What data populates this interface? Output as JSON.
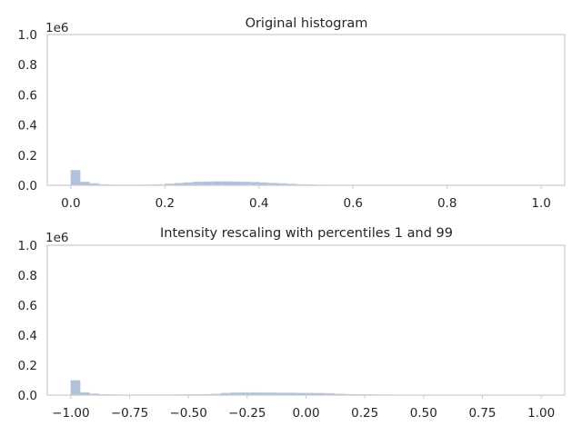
{
  "chart_data": [
    {
      "type": "bar",
      "title": "Original histogram",
      "xlabel": "",
      "ylabel": "",
      "y_offset_label": "1e6",
      "xlim": [
        -0.05,
        1.05
      ],
      "ylim": [
        0,
        1000000
      ],
      "grid": false,
      "xticks": [
        0.0,
        0.2,
        0.4,
        0.6,
        0.8,
        1.0
      ],
      "xtick_labels": [
        "0.0",
        "0.2",
        "0.4",
        "0.6",
        "0.8",
        "1.0"
      ],
      "yticks": [
        0,
        200000,
        400000,
        600000,
        800000,
        1000000
      ],
      "ytick_labels": [
        "0.0",
        "0.2",
        "0.4",
        "0.6",
        "0.8",
        "1.0"
      ],
      "bin_edges": [
        0.0,
        0.02,
        0.04,
        0.06,
        0.08,
        0.1,
        0.12,
        0.14,
        0.16,
        0.18,
        0.2,
        0.22,
        0.24,
        0.26,
        0.28,
        0.3,
        0.32,
        0.34,
        0.36,
        0.38,
        0.4,
        0.42,
        0.44,
        0.46,
        0.48,
        0.5,
        0.52,
        0.54,
        0.56,
        0.58,
        0.6,
        0.62,
        0.64,
        0.66,
        0.68,
        0.7,
        0.72,
        0.74,
        0.76,
        0.78,
        0.8,
        0.82,
        0.84,
        0.86,
        0.88,
        0.9,
        0.92,
        0.94,
        0.96,
        0.98,
        1.0
      ],
      "values": [
        100000,
        22000,
        12000,
        6000,
        3000,
        2000,
        2000,
        3000,
        4000,
        5000,
        10000,
        14000,
        18000,
        22000,
        24000,
        25000,
        25000,
        24000,
        23000,
        21000,
        18000,
        15000,
        12000,
        9000,
        6000,
        4000,
        2000,
        1000,
        1000,
        500,
        500,
        500,
        500,
        500,
        500,
        500,
        500,
        500,
        500,
        500,
        500,
        500,
        500,
        500,
        500,
        500,
        500,
        500,
        500,
        500
      ]
    },
    {
      "type": "bar",
      "title": "Intensity rescaling with percentiles 1 and 99",
      "xlabel": "",
      "ylabel": "",
      "y_offset_label": "1e6",
      "xlim": [
        -1.1,
        1.1
      ],
      "ylim": [
        0,
        1000000
      ],
      "grid": false,
      "xticks": [
        -1.0,
        -0.75,
        -0.5,
        -0.25,
        0.0,
        0.25,
        0.5,
        0.75,
        1.0
      ],
      "xtick_labels": [
        "−1.00",
        "−0.75",
        "−0.50",
        "−0.25",
        "0.00",
        "0.25",
        "0.50",
        "0.75",
        "1.00"
      ],
      "yticks": [
        0,
        200000,
        400000,
        600000,
        800000,
        1000000
      ],
      "ytick_labels": [
        "0.0",
        "0.2",
        "0.4",
        "0.6",
        "0.8",
        "1.0"
      ],
      "bin_edges": [
        -1.0,
        -0.96,
        -0.92,
        -0.88,
        -0.84,
        -0.8,
        -0.76,
        -0.72,
        -0.68,
        -0.64,
        -0.6,
        -0.56,
        -0.52,
        -0.48,
        -0.44,
        -0.4,
        -0.36,
        -0.32,
        -0.28,
        -0.24,
        -0.2,
        -0.16,
        -0.12,
        -0.08,
        -0.04,
        0.0,
        0.04,
        0.08,
        0.12,
        0.16,
        0.2,
        0.24,
        0.28,
        0.32,
        0.36,
        0.4,
        0.44,
        0.48,
        0.52,
        0.56,
        0.6,
        0.64,
        0.68,
        0.72,
        0.76,
        0.8,
        0.84,
        0.88,
        0.92,
        0.96,
        1.0
      ],
      "values": [
        98000,
        18000,
        9000,
        5000,
        3000,
        2000,
        2000,
        2000,
        2000,
        2000,
        2000,
        3000,
        4000,
        5000,
        6000,
        8000,
        14000,
        16000,
        17000,
        17000,
        16000,
        16000,
        15000,
        15000,
        14000,
        14000,
        13000,
        12000,
        8000,
        6000,
        5000,
        4000,
        3000,
        2000,
        1500,
        1000,
        1000,
        800,
        600,
        500,
        500,
        500,
        500,
        500,
        500,
        500,
        500,
        500,
        500,
        500
      ]
    }
  ]
}
